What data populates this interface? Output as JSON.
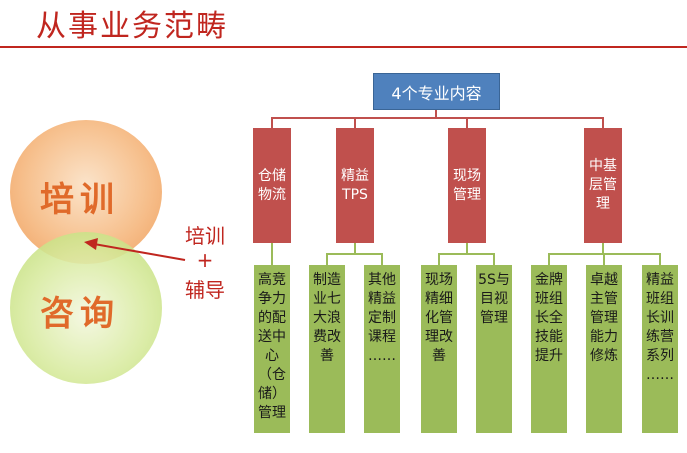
{
  "header": {
    "title": "从事业务范畴"
  },
  "circles": {
    "top_label": "培训",
    "bottom_label": "咨询"
  },
  "side_note": {
    "line1": "培训",
    "line2": "+",
    "line3": "辅导"
  },
  "diagram": {
    "root": "4个专业内容",
    "categories": [
      {
        "label": "仓储\n物流"
      },
      {
        "label": "精益\nTPS"
      },
      {
        "label": "现场\n管理"
      },
      {
        "label": "中基\n层管\n理"
      }
    ],
    "leaves": [
      "高竞\n争力\n的配\n送中\n心\n（仓\n储）\n管理",
      "制造\n业七\n大浪\n费改\n善",
      "其他\n精益\n定制\n课程\n……",
      "现场\n精细\n化管\n理改\n善",
      "5S与\n目视\n管理",
      "金牌\n班组\n长全\n技能\n提升",
      "卓越\n主管\n管理\n能力\n修炼",
      "精益\n班组\n长训\n练营\n系列\n……"
    ]
  },
  "colors": {
    "accent_red": "#c0261f",
    "root_blue": "#4f81bd",
    "category_red": "#c0504d",
    "leaf_green": "#9bbb59"
  }
}
